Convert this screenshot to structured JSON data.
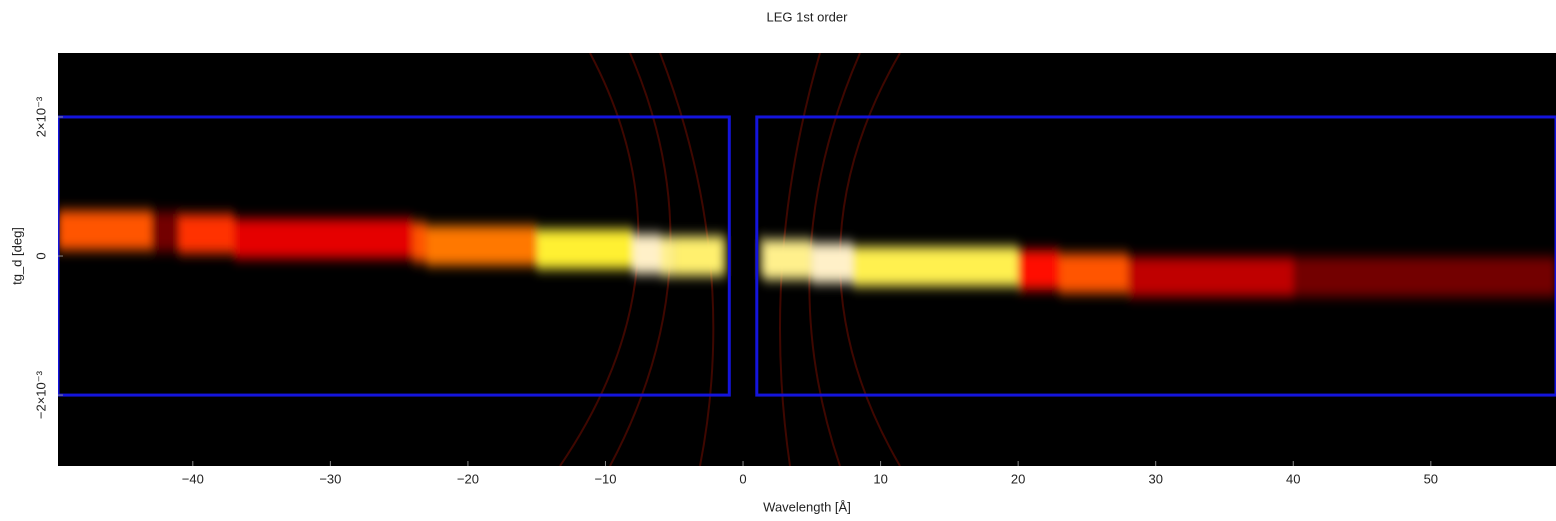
{
  "chart_data": {
    "type": "spectrum-image",
    "title": "LEG 1st order",
    "x_label": "Wavelength [Å]",
    "y_label": "tg_d [deg]",
    "xlim": [
      -49.8,
      59.1
    ],
    "ylim": [
      -0.00302,
      0.00292
    ],
    "xticks": [
      {
        "value": -40,
        "label": "−40"
      },
      {
        "value": -30,
        "label": "−30"
      },
      {
        "value": -20,
        "label": "−20"
      },
      {
        "value": -10,
        "label": "−10"
      },
      0,
      10,
      20,
      30,
      40,
      50
    ],
    "yticks": [
      {
        "value": -0.002,
        "label": "−2×10⁻³"
      },
      0,
      {
        "value": 0.002,
        "label": "2×10⁻³"
      }
    ],
    "trace": {
      "bins": [
        -49.8,
        -43,
        -41,
        -37,
        -24,
        -23,
        -15,
        -8,
        -6,
        -5,
        -1.5,
        1.5,
        5,
        8,
        20,
        23,
        28,
        40,
        59.1
      ],
      "intensity": [
        0.45,
        0.15,
        0.4,
        0.3,
        0.45,
        0.5,
        0.75,
        1.0,
        0.9,
        0.85,
        0,
        0.9,
        1.0,
        0.8,
        0.35,
        0.45,
        0.25,
        0.15
      ],
      "center": [
        0.00037,
        0.00035,
        0.00032,
        0.00025,
        0.0002,
        0.00015,
        0.0001,
        3e-05,
        0.0,
        0.0,
        0.0,
        -5e-05,
        -0.0001,
        -0.00015,
        -0.0002,
        -0.00025,
        -0.0003,
        -0.0003
      ]
    },
    "regions": [
      {
        "x": [
          -49.8,
          -1
        ],
        "y": [
          -0.002,
          0.002
        ]
      },
      {
        "x": [
          1,
          59.1
        ],
        "y": [
          -0.002,
          0.002
        ]
      }
    ],
    "region_color": "#1414dc"
  }
}
